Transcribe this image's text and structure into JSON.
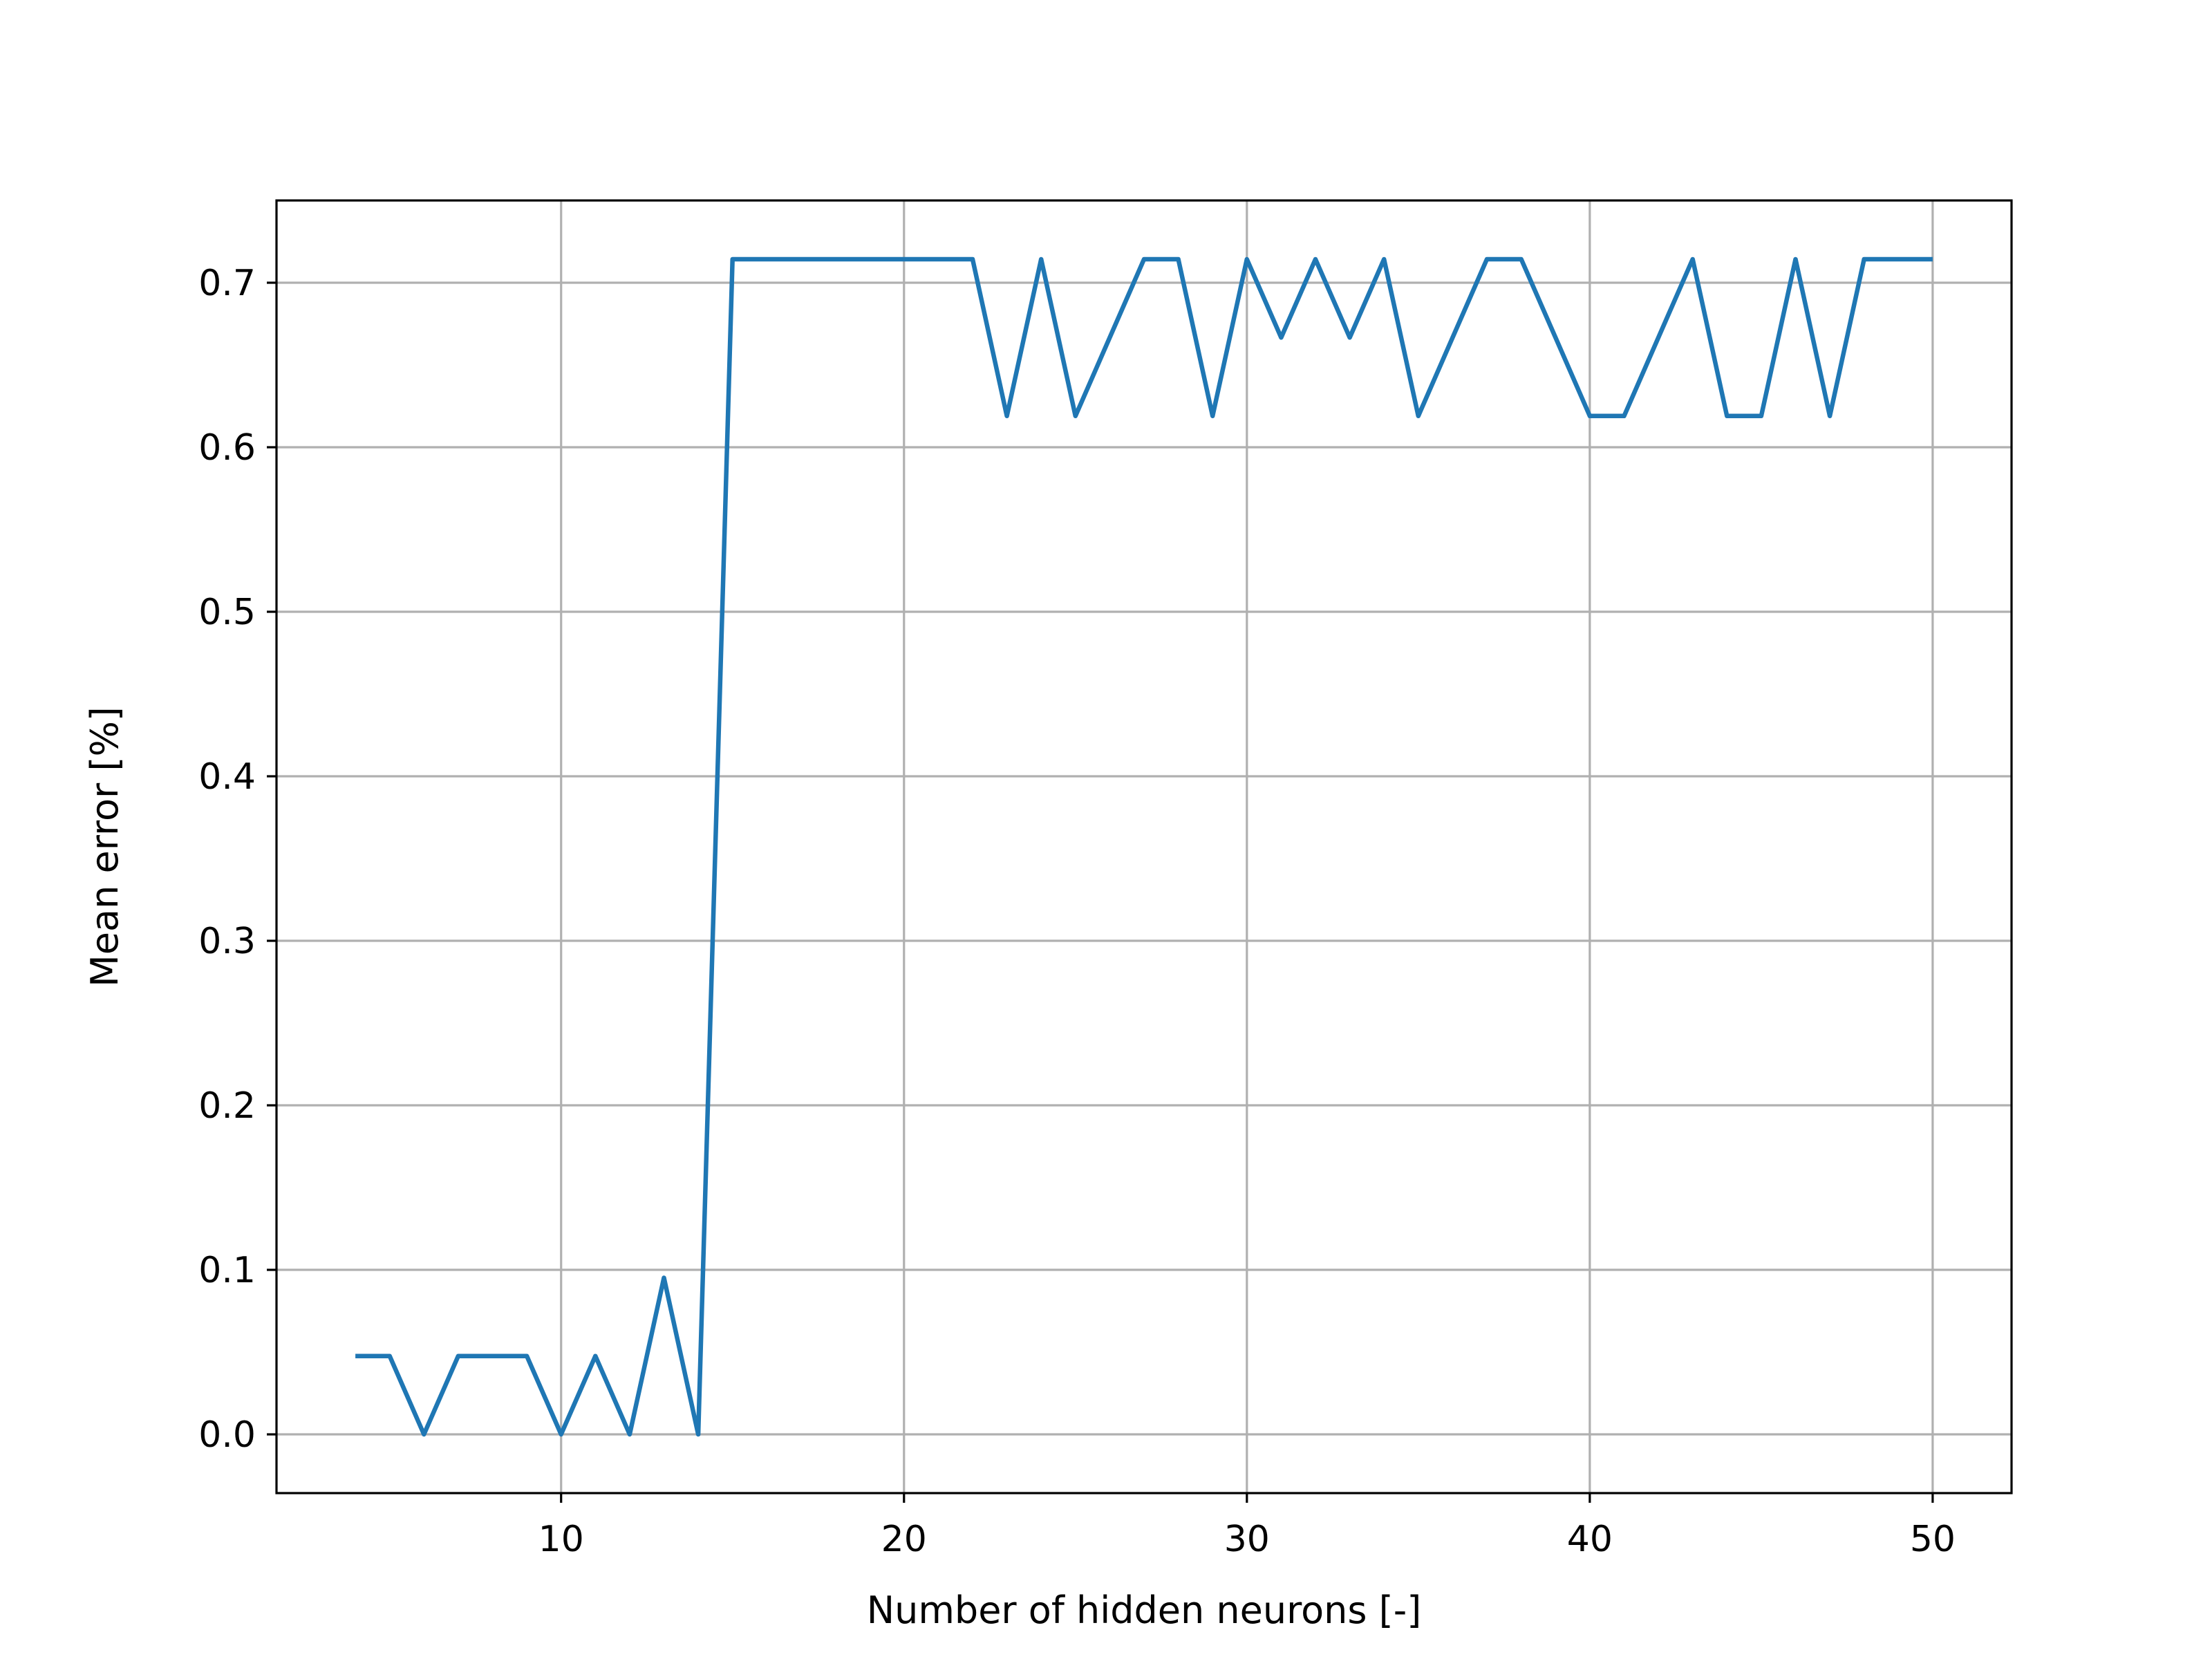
{
  "chart_data": {
    "type": "line",
    "title": "",
    "xlabel": "Number of hidden neurons [-]",
    "ylabel": "Mean error [%]",
    "xlim": [
      1.7,
      52.3
    ],
    "ylim": [
      -0.0357,
      0.75
    ],
    "xticks": [
      10,
      20,
      30,
      40,
      50
    ],
    "xtick_labels": [
      "10",
      "20",
      "30",
      "40",
      "50"
    ],
    "yticks": [
      0.0,
      0.1,
      0.2,
      0.3,
      0.4,
      0.5,
      0.6,
      0.7
    ],
    "ytick_labels": [
      "0.0",
      "0.1",
      "0.2",
      "0.3",
      "0.4",
      "0.5",
      "0.6",
      "0.7"
    ],
    "grid": true,
    "line_color": "#1f77b4",
    "grid_color": "#b0b0b0",
    "series": [
      {
        "x": [
          4,
          5,
          6,
          7,
          8,
          9,
          10,
          11,
          12,
          13,
          14,
          15,
          16,
          17,
          18,
          19,
          20,
          21,
          22,
          23,
          24,
          25,
          26,
          27,
          28,
          29,
          30,
          31,
          32,
          33,
          34,
          35,
          36,
          37,
          38,
          39,
          40,
          41,
          42,
          43,
          44,
          45,
          46,
          47,
          48,
          49,
          50
        ],
        "values": [
          0.0476,
          0.0476,
          0.0,
          0.0476,
          0.0476,
          0.0476,
          0.0,
          0.0476,
          0.0,
          0.0952,
          0.0,
          0.7143,
          0.7143,
          0.7143,
          0.7143,
          0.7143,
          0.7143,
          0.7143,
          0.7143,
          0.619,
          0.7143,
          0.619,
          0.6667,
          0.7143,
          0.7143,
          0.619,
          0.7143,
          0.6667,
          0.7143,
          0.6667,
          0.7143,
          0.619,
          0.6667,
          0.7143,
          0.7143,
          0.6667,
          0.619,
          0.619,
          0.6667,
          0.7143,
          0.619,
          0.619,
          0.7143,
          0.619,
          0.7143,
          0.7143,
          0.7143
        ]
      }
    ]
  }
}
